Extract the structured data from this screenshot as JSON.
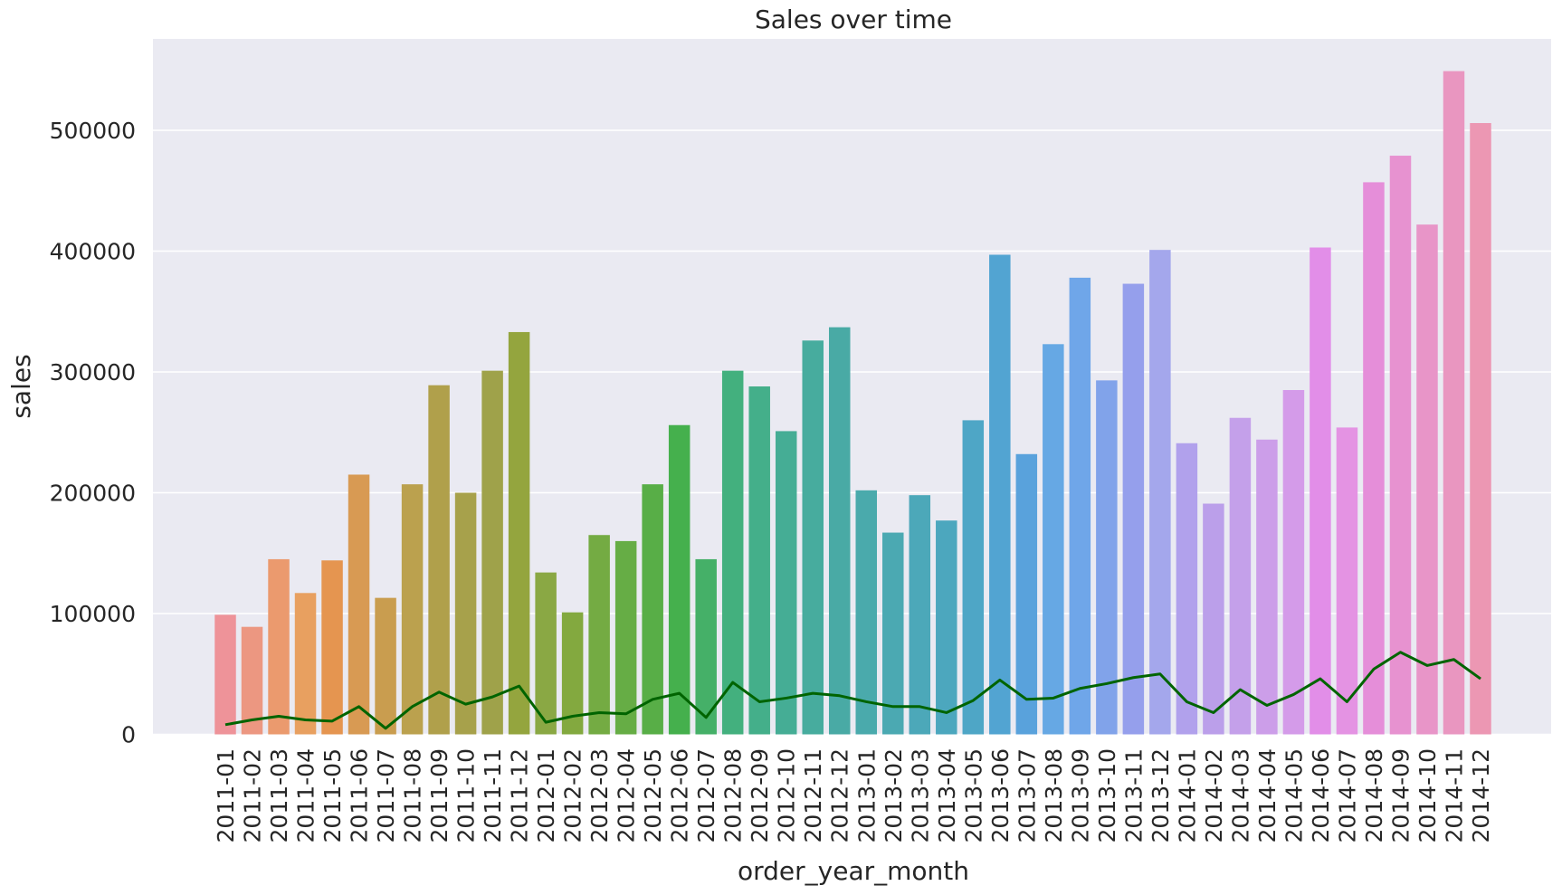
{
  "chart_data": {
    "type": "bar",
    "title": "Sales over time",
    "xlabel": "order_year_month",
    "ylabel": "sales",
    "ylim": [
      0,
      580000
    ],
    "yticks": [
      0,
      100000,
      200000,
      300000,
      400000,
      500000
    ],
    "grid": true,
    "background": "#eaeaf2",
    "categories": [
      "2011-01",
      "2011-02",
      "2011-03",
      "2011-04",
      "2011-05",
      "2011-06",
      "2011-07",
      "2011-08",
      "2011-09",
      "2011-10",
      "2011-11",
      "2011-12",
      "2012-01",
      "2012-02",
      "2012-03",
      "2012-04",
      "2012-05",
      "2012-06",
      "2012-07",
      "2012-08",
      "2012-09",
      "2012-10",
      "2012-11",
      "2012-12",
      "2013-01",
      "2013-02",
      "2013-03",
      "2013-04",
      "2013-05",
      "2013-06",
      "2013-07",
      "2013-08",
      "2013-09",
      "2013-10",
      "2013-11",
      "2013-12",
      "2014-01",
      "2014-02",
      "2014-03",
      "2014-04",
      "2014-05",
      "2014-06",
      "2014-07",
      "2014-08",
      "2014-09",
      "2014-10",
      "2014-11",
      "2014-12"
    ],
    "series": [
      {
        "type": "bar",
        "values": [
          99000,
          89000,
          145000,
          117000,
          144000,
          215000,
          113000,
          207000,
          289000,
          200000,
          301000,
          333000,
          134000,
          101000,
          165000,
          160000,
          207000,
          256000,
          145000,
          301000,
          288000,
          251000,
          326000,
          337000,
          202000,
          167000,
          198000,
          177000,
          260000,
          397000,
          232000,
          323000,
          378000,
          293000,
          373000,
          401000,
          241000,
          191000,
          262000,
          244000,
          285000,
          403000,
          254000,
          457000,
          479000,
          422000,
          549000,
          506000
        ],
        "colors": [
          "#ee9399",
          "#ec9781",
          "#eb9a6e",
          "#e8a060",
          "#e59550",
          "#d89a53",
          "#c99d4f",
          "#bba14e",
          "#b0a04b",
          "#a7a14b",
          "#9fa24a",
          "#94a53e",
          "#8aa844",
          "#83a93f",
          "#74ab43",
          "#66ad45",
          "#58ae47",
          "#45b04d",
          "#45b068",
          "#43b07e",
          "#44af8a",
          "#45ad95",
          "#47ac9e",
          "#49aaa5",
          "#4aaaac",
          "#4ba9b2",
          "#4ca8b9",
          "#4ca7be",
          "#4ea6c6",
          "#52a4d2",
          "#59a2dc",
          "#66a8e4",
          "#6fa6e9",
          "#81a3ea",
          "#959fec",
          "#a4a7ec",
          "#b1a1ec",
          "#bb9fea",
          "#c4a0ea",
          "#cc9ee9",
          "#d49be9",
          "#e28ee8",
          "#e493e3",
          "#e58ed9",
          "#e792d0",
          "#e895c8",
          "#e996c0",
          "#ec97b3"
        ]
      },
      {
        "type": "line",
        "color": "#006400",
        "values": [
          8000,
          12000,
          15000,
          12000,
          11000,
          23000,
          5000,
          23000,
          35000,
          25000,
          31000,
          40000,
          10000,
          15000,
          18000,
          17000,
          29000,
          34000,
          14000,
          43000,
          27000,
          30000,
          34000,
          32000,
          27000,
          23000,
          23000,
          18000,
          28000,
          45000,
          29000,
          30000,
          38000,
          42000,
          47000,
          50000,
          27000,
          18000,
          37000,
          24000,
          33000,
          46000,
          27000,
          54000,
          68000,
          57000,
          62000,
          46000
        ]
      }
    ]
  }
}
